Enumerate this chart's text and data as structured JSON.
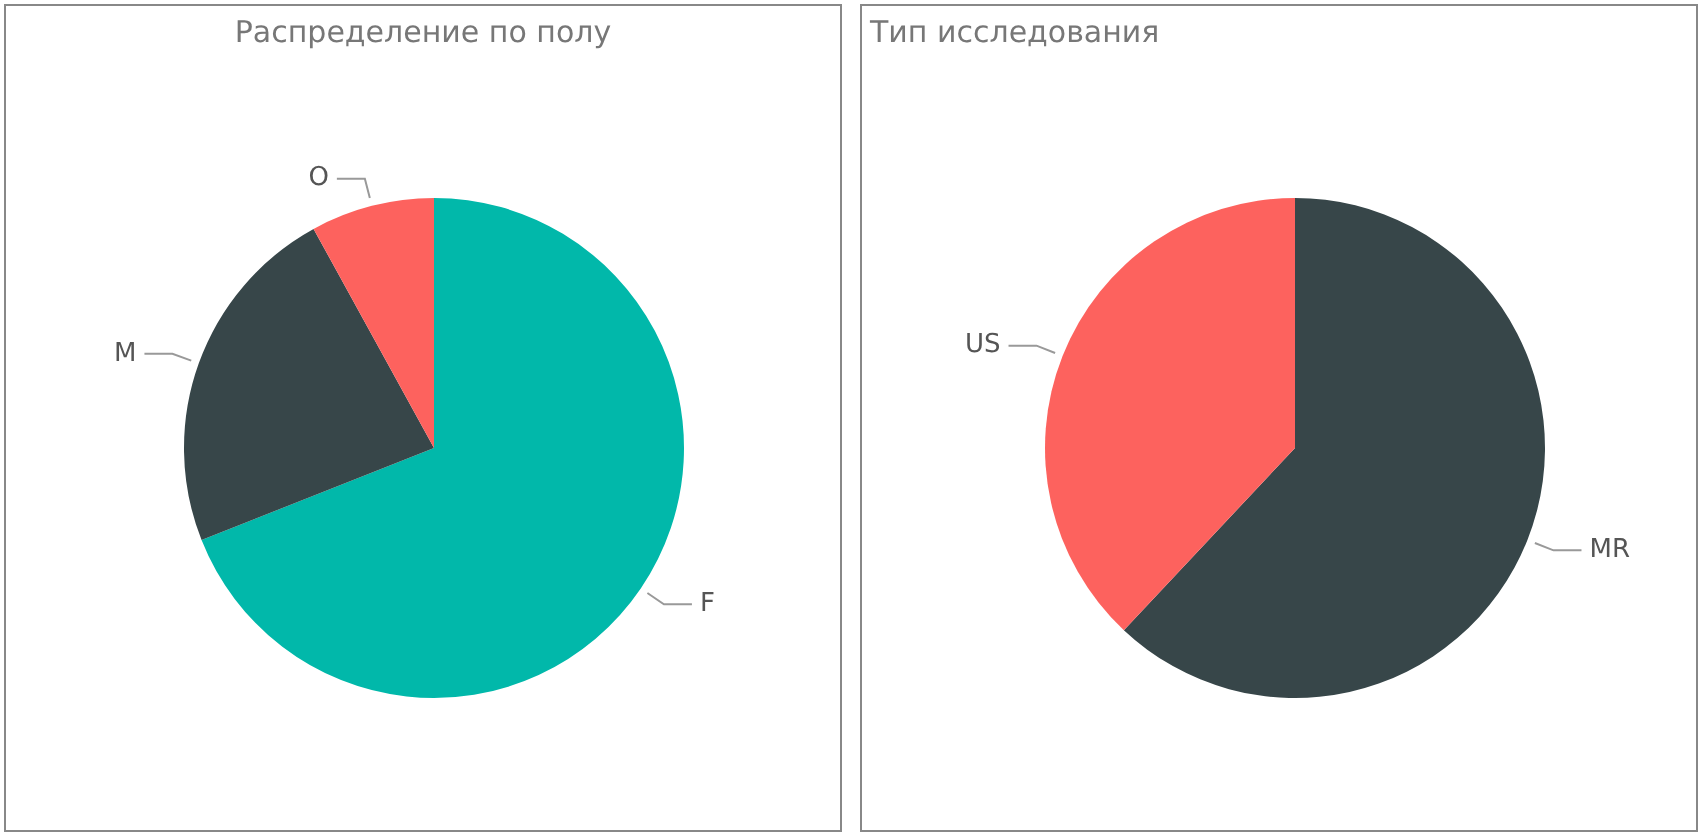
{
  "chart_data": [
    {
      "type": "pie",
      "title": "Распределение по полу",
      "categories": [
        "F",
        "M",
        "O"
      ],
      "values": [
        69,
        23,
        8
      ],
      "colors": [
        "#01b8aa",
        "#374649",
        "#fd625e"
      ],
      "legend": false
    },
    {
      "type": "pie",
      "title": "Тип исследования",
      "categories": [
        "MR",
        "US"
      ],
      "values": [
        62,
        38
      ],
      "colors": [
        "#374649",
        "#fd625e"
      ],
      "legend": false
    }
  ]
}
